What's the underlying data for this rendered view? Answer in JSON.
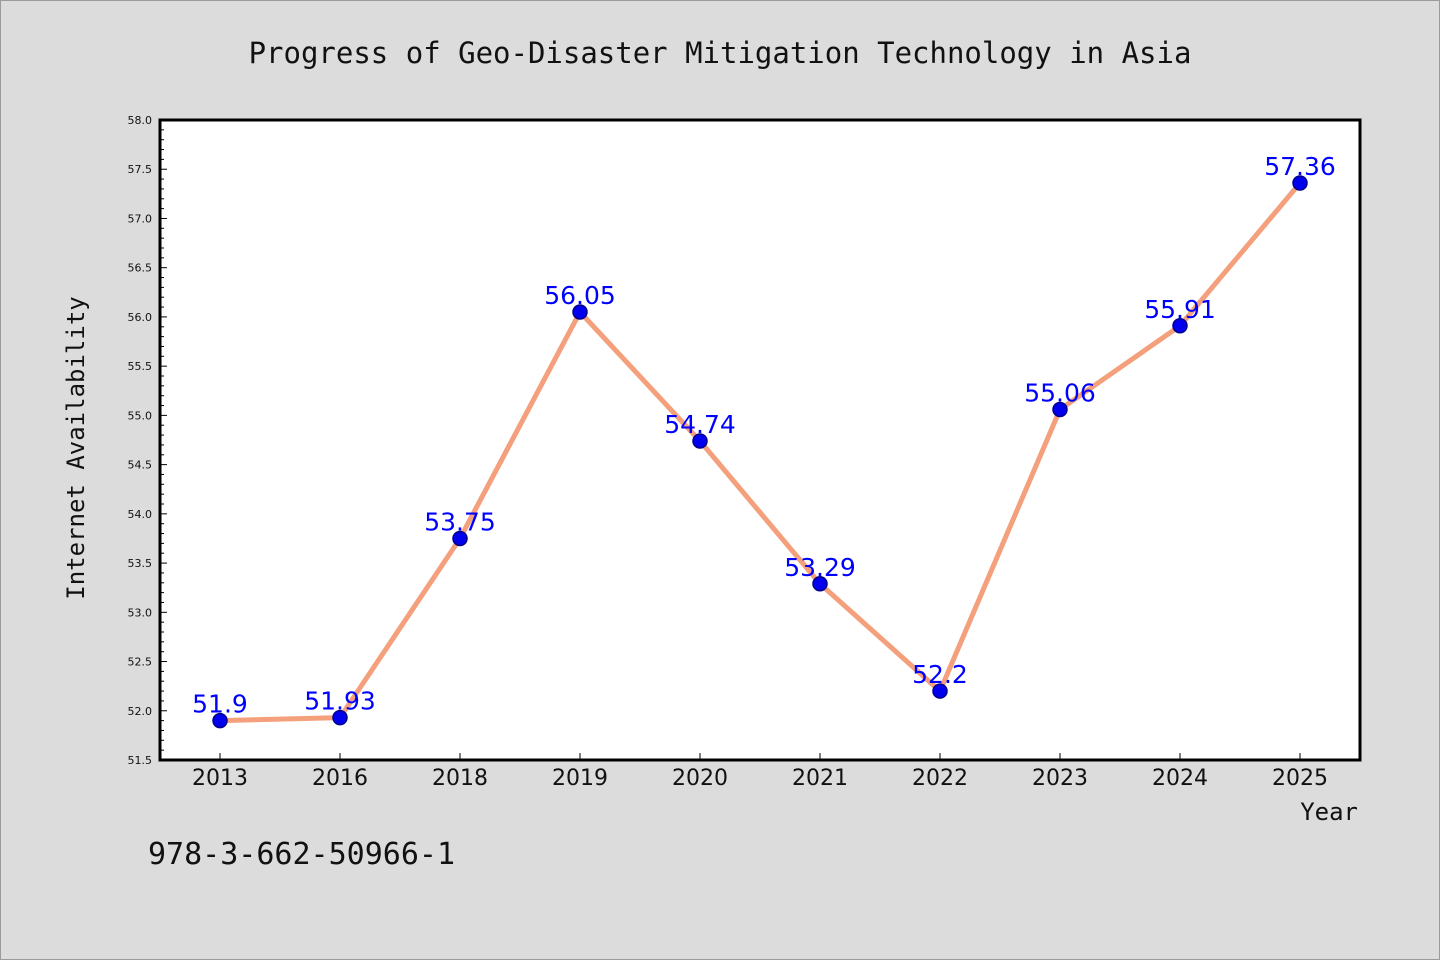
{
  "chart_data": {
    "type": "line",
    "title": "Progress of Geo-Disaster Mitigation Technology in Asia",
    "xlabel": "Year",
    "ylabel": "Internet Availability",
    "categories": [
      "2013",
      "2016",
      "2018",
      "2019",
      "2020",
      "2021",
      "2022",
      "2023",
      "2024",
      "2025"
    ],
    "series": [
      {
        "values": [
          51.9,
          51.93,
          53.75,
          56.05,
          54.74,
          53.29,
          52.2,
          55.06,
          55.91,
          57.36
        ],
        "data_labels": [
          "51.9",
          "51.93",
          "53.75",
          "56.05",
          "54.74",
          "53.29",
          "52.2",
          "55.06",
          "55.91",
          "57.36"
        ],
        "line_color": "#f4a07c",
        "marker_color": "#0000ee"
      }
    ],
    "ylim": [
      51.5,
      58.0
    ],
    "yticks": [
      "51.5",
      "52.0",
      "52.5",
      "53.0",
      "53.5",
      "54.0",
      "54.5",
      "55.0",
      "55.5",
      "56.0",
      "56.5",
      "57.0",
      "57.5",
      "58.0"
    ],
    "grid": false,
    "legend": false
  },
  "footer": {
    "isbn": "978-3-662-50966-1"
  },
  "colors": {
    "background": "#dcdcdc",
    "plot_area": "#ffffff",
    "label_color": "#0000ff"
  }
}
